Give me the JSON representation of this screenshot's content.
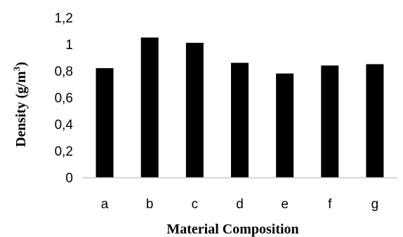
{
  "chart_data": {
    "type": "bar",
    "categories": [
      "a",
      "b",
      "c",
      "d",
      "e",
      "f",
      "g"
    ],
    "values": [
      0.82,
      1.05,
      1.01,
      0.86,
      0.78,
      0.84,
      0.85
    ],
    "xlabel": "Material Composition",
    "ylabel_main": "Density (g/m",
    "ylabel_sup": "3",
    "ylabel_end": ")",
    "ylim": [
      0,
      1.2
    ],
    "yticks": [
      "0",
      "0,2",
      "0,4",
      "0,6",
      "0,8",
      "1",
      "1,2"
    ],
    "grid": false,
    "bar_color": "#000000",
    "axis_color": "#c8c8c8"
  }
}
